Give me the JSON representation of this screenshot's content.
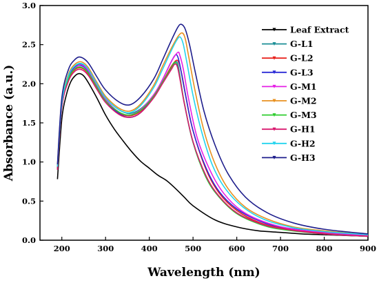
{
  "chart_data": {
    "type": "line",
    "title": "",
    "xlabel": "Wavelength (nm)",
    "ylabel": "Absorbance (a.u.)",
    "xlim": [
      150,
      900
    ],
    "ylim": [
      0.0,
      3.0
    ],
    "xticks": [
      200,
      300,
      400,
      500,
      600,
      700,
      800,
      900
    ],
    "yticks": [
      0.0,
      0.5,
      1.0,
      1.5,
      2.0,
      2.5,
      3.0
    ],
    "ytick_labels": [
      "0.0",
      "0.5",
      "1.0",
      "1.5",
      "2.0",
      "2.5",
      "3.0"
    ],
    "grid": false,
    "legend_position": "top-right",
    "series": [
      {
        "name": "Leaf Extract",
        "color": "#000000",
        "points": [
          [
            190,
            0.78
          ],
          [
            200,
            1.55
          ],
          [
            210,
            1.85
          ],
          [
            220,
            2.02
          ],
          [
            230,
            2.1
          ],
          [
            240,
            2.13
          ],
          [
            250,
            2.1
          ],
          [
            260,
            2.02
          ],
          [
            280,
            1.82
          ],
          [
            300,
            1.6
          ],
          [
            320,
            1.42
          ],
          [
            340,
            1.27
          ],
          [
            360,
            1.13
          ],
          [
            380,
            1.01
          ],
          [
            400,
            0.92
          ],
          [
            420,
            0.83
          ],
          [
            440,
            0.76
          ],
          [
            460,
            0.66
          ],
          [
            480,
            0.55
          ],
          [
            500,
            0.44
          ],
          [
            550,
            0.26
          ],
          [
            600,
            0.17
          ],
          [
            650,
            0.12
          ],
          [
            700,
            0.1
          ],
          [
            750,
            0.08
          ],
          [
            800,
            0.07
          ],
          [
            850,
            0.06
          ],
          [
            900,
            0.05
          ]
        ]
      },
      {
        "name": "G-L1",
        "color": "#1a8e95",
        "points": [
          [
            190,
            0.95
          ],
          [
            200,
            1.75
          ],
          [
            215,
            2.08
          ],
          [
            230,
            2.22
          ],
          [
            245,
            2.25
          ],
          [
            260,
            2.18
          ],
          [
            280,
            2.0
          ],
          [
            300,
            1.82
          ],
          [
            330,
            1.67
          ],
          [
            355,
            1.62
          ],
          [
            380,
            1.68
          ],
          [
            410,
            1.85
          ],
          [
            430,
            2.02
          ],
          [
            450,
            2.2
          ],
          [
            460,
            2.28
          ],
          [
            465,
            2.25
          ],
          [
            470,
            2.1
          ],
          [
            480,
            1.75
          ],
          [
            500,
            1.25
          ],
          [
            530,
            0.8
          ],
          [
            560,
            0.55
          ],
          [
            600,
            0.35
          ],
          [
            650,
            0.22
          ],
          [
            700,
            0.15
          ],
          [
            800,
            0.08
          ],
          [
            900,
            0.05
          ]
        ]
      },
      {
        "name": "G-L2",
        "color": "#e8231f",
        "points": [
          [
            190,
            0.9
          ],
          [
            200,
            1.7
          ],
          [
            215,
            2.05
          ],
          [
            230,
            2.18
          ],
          [
            245,
            2.2
          ],
          [
            260,
            2.13
          ],
          [
            280,
            1.95
          ],
          [
            300,
            1.78
          ],
          [
            330,
            1.63
          ],
          [
            355,
            1.59
          ],
          [
            380,
            1.65
          ],
          [
            410,
            1.84
          ],
          [
            430,
            2.02
          ],
          [
            450,
            2.22
          ],
          [
            462,
            2.3
          ],
          [
            468,
            2.26
          ],
          [
            475,
            2.1
          ],
          [
            485,
            1.8
          ],
          [
            500,
            1.4
          ],
          [
            530,
            0.9
          ],
          [
            560,
            0.6
          ],
          [
            600,
            0.38
          ],
          [
            650,
            0.23
          ],
          [
            700,
            0.16
          ],
          [
            800,
            0.09
          ],
          [
            900,
            0.06
          ]
        ]
      },
      {
        "name": "G-L3",
        "color": "#2a2ad6",
        "points": [
          [
            190,
            0.92
          ],
          [
            200,
            1.74
          ],
          [
            215,
            2.08
          ],
          [
            230,
            2.21
          ],
          [
            245,
            2.23
          ],
          [
            260,
            2.16
          ],
          [
            280,
            1.96
          ],
          [
            300,
            1.78
          ],
          [
            330,
            1.62
          ],
          [
            355,
            1.57
          ],
          [
            380,
            1.63
          ],
          [
            410,
            1.84
          ],
          [
            430,
            2.05
          ],
          [
            450,
            2.28
          ],
          [
            460,
            2.37
          ],
          [
            466,
            2.33
          ],
          [
            472,
            2.18
          ],
          [
            482,
            1.88
          ],
          [
            500,
            1.4
          ],
          [
            530,
            0.92
          ],
          [
            560,
            0.62
          ],
          [
            600,
            0.4
          ],
          [
            650,
            0.25
          ],
          [
            700,
            0.17
          ],
          [
            800,
            0.1
          ],
          [
            900,
            0.06
          ]
        ]
      },
      {
        "name": "G-M1",
        "color": "#e620e6",
        "points": [
          [
            190,
            0.93
          ],
          [
            200,
            1.72
          ],
          [
            215,
            2.06
          ],
          [
            230,
            2.2
          ],
          [
            245,
            2.24
          ],
          [
            260,
            2.17
          ],
          [
            280,
            1.98
          ],
          [
            300,
            1.8
          ],
          [
            330,
            1.64
          ],
          [
            355,
            1.6
          ],
          [
            380,
            1.67
          ],
          [
            410,
            1.86
          ],
          [
            430,
            2.05
          ],
          [
            450,
            2.28
          ],
          [
            465,
            2.4
          ],
          [
            470,
            2.36
          ],
          [
            478,
            2.18
          ],
          [
            490,
            1.8
          ],
          [
            510,
            1.3
          ],
          [
            540,
            0.88
          ],
          [
            570,
            0.6
          ],
          [
            610,
            0.38
          ],
          [
            660,
            0.24
          ],
          [
            720,
            0.15
          ],
          [
            800,
            0.1
          ],
          [
            900,
            0.06
          ]
        ]
      },
      {
        "name": "G-M2",
        "color": "#e8901f",
        "points": [
          [
            190,
            0.96
          ],
          [
            200,
            1.78
          ],
          [
            215,
            2.12
          ],
          [
            230,
            2.25
          ],
          [
            245,
            2.28
          ],
          [
            260,
            2.21
          ],
          [
            280,
            2.02
          ],
          [
            300,
            1.84
          ],
          [
            330,
            1.69
          ],
          [
            355,
            1.65
          ],
          [
            380,
            1.74
          ],
          [
            410,
            1.98
          ],
          [
            430,
            2.22
          ],
          [
            450,
            2.45
          ],
          [
            465,
            2.6
          ],
          [
            475,
            2.65
          ],
          [
            482,
            2.58
          ],
          [
            490,
            2.35
          ],
          [
            505,
            1.9
          ],
          [
            525,
            1.4
          ],
          [
            550,
            0.98
          ],
          [
            580,
            0.66
          ],
          [
            620,
            0.42
          ],
          [
            670,
            0.27
          ],
          [
            730,
            0.17
          ],
          [
            800,
            0.12
          ],
          [
            900,
            0.07
          ]
        ]
      },
      {
        "name": "G-M3",
        "color": "#2ecc2e",
        "points": [
          [
            190,
            0.92
          ],
          [
            200,
            1.72
          ],
          [
            215,
            2.06
          ],
          [
            230,
            2.19
          ],
          [
            245,
            2.21
          ],
          [
            260,
            2.14
          ],
          [
            280,
            1.96
          ],
          [
            300,
            1.78
          ],
          [
            330,
            1.64
          ],
          [
            355,
            1.6
          ],
          [
            380,
            1.66
          ],
          [
            410,
            1.84
          ],
          [
            430,
            2.02
          ],
          [
            450,
            2.2
          ],
          [
            457,
            2.27
          ],
          [
            463,
            2.24
          ],
          [
            470,
            2.08
          ],
          [
            480,
            1.76
          ],
          [
            500,
            1.25
          ],
          [
            530,
            0.8
          ],
          [
            560,
            0.55
          ],
          [
            600,
            0.34
          ],
          [
            650,
            0.21
          ],
          [
            700,
            0.14
          ],
          [
            800,
            0.08
          ],
          [
            900,
            0.05
          ]
        ]
      },
      {
        "name": "G-H1",
        "color": "#d9196f",
        "points": [
          [
            190,
            0.9
          ],
          [
            200,
            1.7
          ],
          [
            215,
            2.03
          ],
          [
            230,
            2.16
          ],
          [
            245,
            2.18
          ],
          [
            260,
            2.11
          ],
          [
            280,
            1.93
          ],
          [
            300,
            1.76
          ],
          [
            330,
            1.61
          ],
          [
            355,
            1.57
          ],
          [
            380,
            1.63
          ],
          [
            410,
            1.82
          ],
          [
            430,
            2.0
          ],
          [
            450,
            2.18
          ],
          [
            458,
            2.25
          ],
          [
            464,
            2.22
          ],
          [
            470,
            2.06
          ],
          [
            480,
            1.75
          ],
          [
            500,
            1.26
          ],
          [
            530,
            0.82
          ],
          [
            560,
            0.56
          ],
          [
            600,
            0.35
          ],
          [
            650,
            0.22
          ],
          [
            700,
            0.15
          ],
          [
            800,
            0.08
          ],
          [
            900,
            0.05
          ]
        ]
      },
      {
        "name": "G-H2",
        "color": "#22d4ee",
        "points": [
          [
            190,
            0.94
          ],
          [
            200,
            1.75
          ],
          [
            215,
            2.1
          ],
          [
            230,
            2.23
          ],
          [
            245,
            2.26
          ],
          [
            260,
            2.19
          ],
          [
            280,
            2.0
          ],
          [
            300,
            1.82
          ],
          [
            330,
            1.67
          ],
          [
            355,
            1.63
          ],
          [
            380,
            1.72
          ],
          [
            410,
            1.95
          ],
          [
            430,
            2.18
          ],
          [
            450,
            2.42
          ],
          [
            462,
            2.55
          ],
          [
            470,
            2.6
          ],
          [
            477,
            2.52
          ],
          [
            485,
            2.3
          ],
          [
            500,
            1.85
          ],
          [
            520,
            1.38
          ],
          [
            545,
            0.95
          ],
          [
            575,
            0.65
          ],
          [
            615,
            0.42
          ],
          [
            665,
            0.26
          ],
          [
            730,
            0.16
          ],
          [
            800,
            0.11
          ],
          [
            900,
            0.07
          ]
        ]
      },
      {
        "name": "G-H3",
        "color": "#1e1e8c",
        "points": [
          [
            190,
            0.97
          ],
          [
            200,
            1.82
          ],
          [
            215,
            2.18
          ],
          [
            230,
            2.31
          ],
          [
            243,
            2.34
          ],
          [
            260,
            2.27
          ],
          [
            280,
            2.09
          ],
          [
            300,
            1.92
          ],
          [
            330,
            1.77
          ],
          [
            355,
            1.73
          ],
          [
            380,
            1.83
          ],
          [
            410,
            2.06
          ],
          [
            430,
            2.3
          ],
          [
            450,
            2.55
          ],
          [
            465,
            2.72
          ],
          [
            473,
            2.76
          ],
          [
            482,
            2.7
          ],
          [
            492,
            2.5
          ],
          [
            505,
            2.15
          ],
          [
            525,
            1.65
          ],
          [
            550,
            1.22
          ],
          [
            580,
            0.85
          ],
          [
            620,
            0.55
          ],
          [
            670,
            0.35
          ],
          [
            730,
            0.22
          ],
          [
            800,
            0.14
          ],
          [
            900,
            0.08
          ]
        ]
      }
    ]
  }
}
